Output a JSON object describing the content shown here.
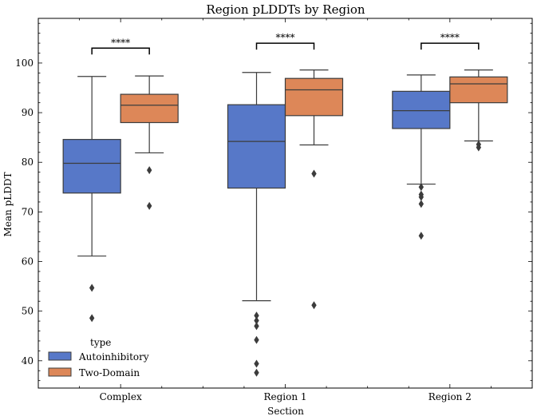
{
  "chart_data": {
    "type": "box",
    "title": "Region pLDDTs by Region",
    "xlabel": "Section",
    "ylabel": "Mean pLDDT",
    "ylim": [
      34.5,
      109
    ],
    "yticks": [
      40,
      50,
      60,
      70,
      80,
      90,
      100
    ],
    "categories": [
      "Complex",
      "Region 1",
      "Region 2"
    ],
    "legend": {
      "title": "type",
      "placement": "lower-left"
    },
    "series": [
      {
        "name": "Autoinhibitory",
        "color": "#5778c8",
        "boxes": [
          {
            "category": "Complex",
            "whisker_low": 61.1,
            "q1": 73.8,
            "median": 79.8,
            "q3": 84.6,
            "whisker_high": 97.3,
            "outliers": [
              54.7,
              48.6
            ]
          },
          {
            "category": "Region 1",
            "whisker_low": 52.1,
            "q1": 74.8,
            "median": 84.2,
            "q3": 91.6,
            "whisker_high": 98.1,
            "outliers": [
              49.1,
              48.1,
              47.0,
              44.2,
              39.4,
              37.6
            ]
          },
          {
            "category": "Region 2",
            "whisker_low": 75.6,
            "q1": 86.8,
            "median": 90.4,
            "q3": 94.3,
            "whisker_high": 97.6,
            "outliers": [
              75.0,
              73.5,
              73.0,
              71.6,
              65.2
            ]
          }
        ]
      },
      {
        "name": "Two-Domain",
        "color": "#dd8758",
        "boxes": [
          {
            "category": "Complex",
            "whisker_low": 81.9,
            "q1": 88.0,
            "median": 91.5,
            "q3": 93.7,
            "whisker_high": 97.4,
            "outliers": [
              78.4,
              71.2
            ]
          },
          {
            "category": "Region 1",
            "whisker_low": 83.5,
            "q1": 89.4,
            "median": 94.6,
            "q3": 96.9,
            "whisker_high": 98.6,
            "outliers": [
              77.7,
              51.2
            ]
          },
          {
            "category": "Region 2",
            "whisker_low": 84.3,
            "q1": 92.0,
            "median": 95.8,
            "q3": 97.2,
            "whisker_high": 98.6,
            "outliers": [
              83.6,
              83.0
            ]
          }
        ]
      }
    ],
    "annotations": [
      {
        "category": "Complex",
        "text": "****",
        "y": 103
      },
      {
        "category": "Region 1",
        "text": "****",
        "y": 104
      },
      {
        "category": "Region 2",
        "text": "****",
        "y": 104
      }
    ]
  }
}
